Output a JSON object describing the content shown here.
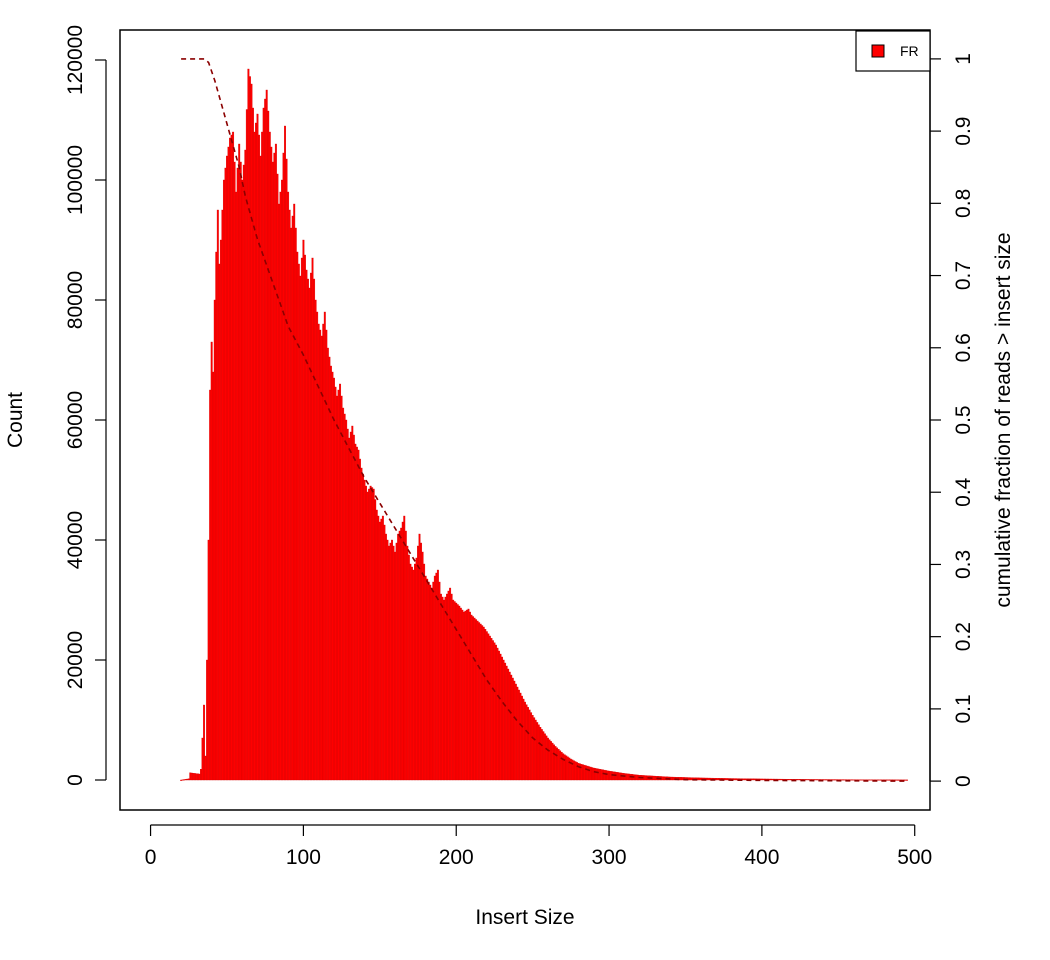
{
  "chart_data": {
    "type": "bar",
    "xlabel": "Insert Size",
    "ylabel": "Count",
    "y2label": "cumulative fraction of reads > insert size",
    "xlim": [
      -20,
      510
    ],
    "ylim": [
      -5000,
      125000
    ],
    "y2lim": [
      -0.04,
      1.04
    ],
    "x_ticks": [
      "0",
      "100",
      "200",
      "300",
      "400",
      "500"
    ],
    "y_ticks": [
      "0",
      "20000",
      "40000",
      "60000",
      "80000",
      "100000",
      "120000"
    ],
    "y2_ticks": [
      "0",
      "0.1",
      "0.2",
      "0.3",
      "0.4",
      "0.5",
      "0.6",
      "0.7",
      "0.8",
      "0.9",
      "1"
    ],
    "legend": {
      "position": "top-right",
      "label": "FR",
      "color": "#ff0000"
    },
    "bar_color": "#ff0000",
    "cumulative_line_color": "#8b0000",
    "histogram_profile": [
      [
        20,
        0
      ],
      [
        25,
        200
      ],
      [
        26,
        1200
      ],
      [
        32,
        1000
      ],
      [
        33,
        1800
      ],
      [
        34,
        7000
      ],
      [
        35,
        12500
      ],
      [
        36,
        4000
      ],
      [
        37,
        20000
      ],
      [
        38,
        40000
      ],
      [
        39,
        65000
      ],
      [
        40,
        73000
      ],
      [
        41,
        68000
      ],
      [
        42,
        80000
      ],
      [
        43,
        88000
      ],
      [
        44,
        95000
      ],
      [
        45,
        86000
      ],
      [
        46,
        90000
      ],
      [
        48,
        100000
      ],
      [
        50,
        104000
      ],
      [
        52,
        107000
      ],
      [
        54,
        108000
      ],
      [
        56,
        98000
      ],
      [
        58,
        106000
      ],
      [
        60,
        100000
      ],
      [
        62,
        105000
      ],
      [
        64,
        118500
      ],
      [
        66,
        116000
      ],
      [
        68,
        108000
      ],
      [
        70,
        111000
      ],
      [
        72,
        104000
      ],
      [
        74,
        112000
      ],
      [
        76,
        115000
      ],
      [
        78,
        108000
      ],
      [
        80,
        103000
      ],
      [
        82,
        106000
      ],
      [
        84,
        96000
      ],
      [
        86,
        100000
      ],
      [
        88,
        109000
      ],
      [
        90,
        98000
      ],
      [
        92,
        92000
      ],
      [
        94,
        96000
      ],
      [
        96,
        88000
      ],
      [
        98,
        84000
      ],
      [
        100,
        90000
      ],
      [
        102,
        85000
      ],
      [
        104,
        82000
      ],
      [
        106,
        87000
      ],
      [
        108,
        80000
      ],
      [
        110,
        76000
      ],
      [
        112,
        74000
      ],
      [
        114,
        78000
      ],
      [
        116,
        72000
      ],
      [
        118,
        69000
      ],
      [
        120,
        67000
      ],
      [
        122,
        64000
      ],
      [
        124,
        66000
      ],
      [
        126,
        62000
      ],
      [
        128,
        60000
      ],
      [
        130,
        57000
      ],
      [
        132,
        59000
      ],
      [
        134,
        56000
      ],
      [
        136,
        55000
      ],
      [
        138,
        52000
      ],
      [
        140,
        50000
      ],
      [
        142,
        48000
      ],
      [
        144,
        49000
      ],
      [
        146,
        48500
      ],
      [
        148,
        45000
      ],
      [
        150,
        43000
      ],
      [
        152,
        44000
      ],
      [
        154,
        41000
      ],
      [
        156,
        39000
      ],
      [
        158,
        40000
      ],
      [
        160,
        38000
      ],
      [
        162,
        41000
      ],
      [
        164,
        42000
      ],
      [
        166,
        44000
      ],
      [
        168,
        39000
      ],
      [
        170,
        36000
      ],
      [
        172,
        35000
      ],
      [
        174,
        37000
      ],
      [
        176,
        41000
      ],
      [
        178,
        38000
      ],
      [
        180,
        34000
      ],
      [
        182,
        33000
      ],
      [
        184,
        32000
      ],
      [
        186,
        34000
      ],
      [
        188,
        35000
      ],
      [
        190,
        31000
      ],
      [
        192,
        30000
      ],
      [
        194,
        31000
      ],
      [
        196,
        32000
      ],
      [
        198,
        30000
      ],
      [
        200,
        29500
      ],
      [
        202,
        29000
      ],
      [
        205,
        28000
      ],
      [
        208,
        28500
      ],
      [
        210,
        27500
      ],
      [
        214,
        26500
      ],
      [
        218,
        25500
      ],
      [
        222,
        24000
      ],
      [
        226,
        22500
      ],
      [
        230,
        20500
      ],
      [
        235,
        18000
      ],
      [
        240,
        15500
      ],
      [
        245,
        13000
      ],
      [
        250,
        10800
      ],
      [
        255,
        8800
      ],
      [
        260,
        7000
      ],
      [
        265,
        5600
      ],
      [
        270,
        4400
      ],
      [
        275,
        3500
      ],
      [
        280,
        2800
      ],
      [
        290,
        2000
      ],
      [
        300,
        1500
      ],
      [
        310,
        1100
      ],
      [
        320,
        800
      ],
      [
        340,
        500
      ],
      [
        360,
        350
      ],
      [
        380,
        250
      ],
      [
        400,
        180
      ],
      [
        430,
        100
      ],
      [
        460,
        60
      ],
      [
        495,
        20
      ]
    ],
    "cumulative_fraction": [
      [
        20,
        1.0
      ],
      [
        28,
        1.0
      ],
      [
        35,
        1.0
      ],
      [
        38,
        0.995
      ],
      [
        42,
        0.97
      ],
      [
        46,
        0.94
      ],
      [
        50,
        0.91
      ],
      [
        54,
        0.88
      ],
      [
        58,
        0.85
      ],
      [
        62,
        0.81
      ],
      [
        66,
        0.78
      ],
      [
        70,
        0.75
      ],
      [
        75,
        0.72
      ],
      [
        80,
        0.69
      ],
      [
        85,
        0.66
      ],
      [
        90,
        0.63
      ],
      [
        95,
        0.61
      ],
      [
        100,
        0.59
      ],
      [
        110,
        0.545
      ],
      [
        120,
        0.5
      ],
      [
        130,
        0.46
      ],
      [
        140,
        0.42
      ],
      [
        150,
        0.385
      ],
      [
        160,
        0.35
      ],
      [
        170,
        0.315
      ],
      [
        180,
        0.28
      ],
      [
        190,
        0.245
      ],
      [
        200,
        0.21
      ],
      [
        210,
        0.175
      ],
      [
        220,
        0.14
      ],
      [
        230,
        0.11
      ],
      [
        240,
        0.083
      ],
      [
        250,
        0.06
      ],
      [
        260,
        0.043
      ],
      [
        270,
        0.03
      ],
      [
        280,
        0.02
      ],
      [
        290,
        0.013
      ],
      [
        300,
        0.009
      ],
      [
        320,
        0.005
      ],
      [
        350,
        0.002
      ],
      [
        400,
        0.001
      ],
      [
        495,
        0.0
      ]
    ]
  }
}
